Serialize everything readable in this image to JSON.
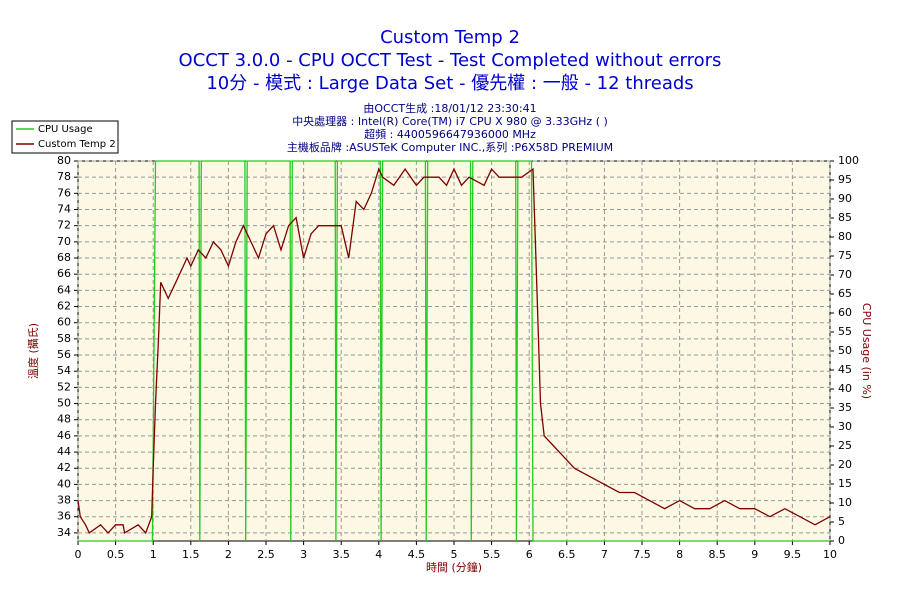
{
  "chart_data": {
    "type": "line",
    "title": "Custom Temp 2",
    "subtitle": "OCCT 3.0.0 - CPU OCCT Test - Test Completed without errors",
    "subtitle2": "10分 - 模式 : Large Data Set - 優先權 : 一般 - 12 threads",
    "info": [
      "由OCCT生成 :18/01/12 23:30:41",
      "中央處理器 : Intel(R) Core(TM) i7 CPU X 980 @ 3.33GHz (   )",
      "超頻 : 4400596647936000 MHz",
      "主機板品牌 :ASUSTeK Computer INC.,系列 :P6X58D PREMIUM"
    ],
    "xlabel": "時間 (分鐘)",
    "ylabel": "溫度 (攝氏)",
    "y2label": "CPU Usage (in %)",
    "xlim": [
      0,
      10
    ],
    "xticks": [
      0,
      0.5,
      1,
      1.5,
      2,
      2.5,
      3,
      3.5,
      4,
      4.5,
      5,
      5.5,
      6,
      6.5,
      7,
      7.5,
      8,
      8.5,
      9,
      9.5,
      10
    ],
    "ylim": [
      33,
      80
    ],
    "yticks": [
      34,
      36,
      38,
      40,
      42,
      44,
      46,
      48,
      50,
      52,
      54,
      56,
      58,
      60,
      62,
      64,
      66,
      68,
      70,
      72,
      74,
      76,
      78,
      80
    ],
    "y2lim": [
      0,
      100
    ],
    "y2ticks": [
      0,
      5,
      10,
      15,
      20,
      25,
      30,
      35,
      40,
      45,
      50,
      55,
      60,
      65,
      70,
      75,
      80,
      85,
      90,
      95,
      100
    ],
    "grid": true,
    "legend": "top-left",
    "series": [
      {
        "name": "CPU Usage",
        "color": "#22cc22",
        "axis": "y2",
        "x": [
          0,
          0.99,
          1.03,
          1.61,
          1.62,
          1.64,
          2.22,
          2.23,
          2.25,
          2.82,
          2.83,
          2.85,
          3.42,
          3.43,
          3.45,
          4.02,
          4.03,
          4.05,
          4.62,
          4.63,
          4.65,
          5.22,
          5.23,
          5.25,
          5.82,
          5.83,
          5.85,
          6.03,
          6.05,
          10
        ],
        "values": [
          0,
          0,
          100,
          100,
          0,
          100,
          100,
          0,
          100,
          100,
          0,
          100,
          100,
          0,
          100,
          100,
          0,
          100,
          100,
          0,
          100,
          100,
          0,
          100,
          100,
          0,
          100,
          100,
          0,
          0
        ]
      },
      {
        "name": "Custom Temp 2",
        "color": "#800000",
        "x": [
          0,
          0.03,
          0.1,
          0.15,
          0.3,
          0.4,
          0.5,
          0.6,
          0.62,
          0.8,
          0.9,
          0.98,
          1.0,
          1.03,
          1.07,
          1.1,
          1.15,
          1.2,
          1.3,
          1.4,
          1.45,
          1.5,
          1.6,
          1.7,
          1.8,
          1.9,
          2.0,
          2.1,
          2.2,
          2.3,
          2.4,
          2.5,
          2.6,
          2.7,
          2.8,
          2.9,
          3.0,
          3.1,
          3.2,
          3.3,
          3.4,
          3.5,
          3.6,
          3.7,
          3.8,
          3.9,
          4.0,
          4.05,
          4.2,
          4.35,
          4.5,
          4.6,
          4.8,
          4.9,
          5.0,
          5.1,
          5.2,
          5.4,
          5.5,
          5.6,
          5.9,
          6.05,
          6.1,
          6.15,
          6.2,
          6.3,
          6.4,
          6.5,
          6.6,
          6.8,
          7.0,
          7.2,
          7.4,
          7.6,
          7.8,
          8.0,
          8.2,
          8.4,
          8.6,
          8.8,
          9.0,
          9.2,
          9.4,
          9.6,
          9.8,
          10
        ],
        "values": [
          38,
          36,
          35,
          34,
          35,
          34,
          35,
          35,
          34,
          35,
          34,
          36,
          42,
          50,
          58,
          65,
          64,
          63,
          65,
          67,
          68,
          67,
          69,
          68,
          70,
          69,
          67,
          70,
          72,
          70,
          68,
          71,
          72,
          69,
          72,
          73,
          68,
          71,
          72,
          72,
          72,
          72,
          68,
          75,
          74,
          76,
          79,
          78,
          77,
          79,
          77,
          78,
          78,
          77,
          79,
          77,
          78,
          77,
          79,
          78,
          78,
          79,
          65,
          50,
          46,
          45,
          44,
          43,
          42,
          41,
          40,
          39,
          39,
          38,
          37,
          38,
          37,
          37,
          38,
          37,
          37,
          36,
          37,
          36,
          35,
          36
        ]
      }
    ]
  }
}
